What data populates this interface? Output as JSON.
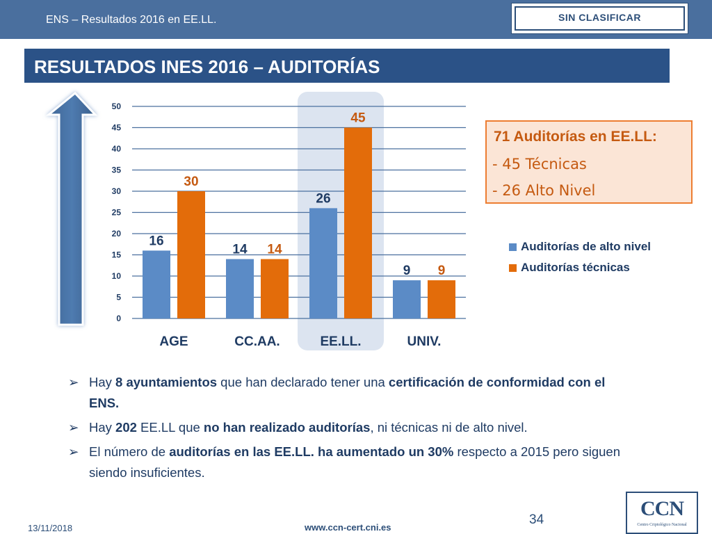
{
  "header": {
    "title": "ENS – Resultados 2016 en EE.LL.",
    "classification": "SIN CLASIFICAR"
  },
  "slide": {
    "title": "RESULTADOS INES 2016 – AUDITORÍAS"
  },
  "chart_data": {
    "type": "bar",
    "categories": [
      "AGE",
      "CC.AA.",
      "EE.LL.",
      "UNIV."
    ],
    "series": [
      {
        "name": "Auditorías de alto nivel",
        "values": [
          16,
          14,
          26,
          9
        ],
        "color": "#5b8bc6"
      },
      {
        "name": "Auditorías técnicas",
        "values": [
          30,
          14,
          45,
          9
        ],
        "color": "#e36c0a"
      }
    ],
    "ylim": [
      0,
      50
    ],
    "yticks": [
      0,
      5,
      10,
      15,
      20,
      25,
      30,
      35,
      40,
      45,
      50
    ],
    "highlighted_category": "EE.LL.",
    "grid": true,
    "legend": "right"
  },
  "callout": {
    "title": "71 Auditorías en EE.LL:",
    "lines": [
      "- 45 Técnicas",
      "- 26 Alto Nivel"
    ]
  },
  "legend": {
    "items": [
      {
        "label": "Auditorías de alto nivel",
        "color": "#5b8bc6"
      },
      {
        "label": "Auditorías técnicas",
        "color": "#e36c0a"
      }
    ]
  },
  "bullets": [
    {
      "marker": "➢",
      "parts": [
        {
          "text": "Hay ",
          "bold": false
        },
        {
          "text": "8 ayuntamientos",
          "bold": true
        },
        {
          "text": " que han declarado tener una ",
          "bold": false
        },
        {
          "text": "certificación de conformidad con el ENS.",
          "bold": true
        }
      ]
    },
    {
      "marker": "➢",
      "parts": [
        {
          "text": "Hay ",
          "bold": false
        },
        {
          "text": "202",
          "bold": true
        },
        {
          "text": " EE.LL que ",
          "bold": false
        },
        {
          "text": "no han realizado auditorías",
          "bold": true
        },
        {
          "text": ", ni técnicas ni de alto nivel.",
          "bold": false
        }
      ]
    },
    {
      "marker": "➢",
      "parts": [
        {
          "text": "El número de ",
          "bold": false
        },
        {
          "text": "auditorías en las EE.LL. ha aumentado un 30%",
          "bold": true
        },
        {
          "text": " respecto a 2015 pero siguen siendo insuficientes.",
          "bold": false
        }
      ]
    }
  ],
  "footer": {
    "date": "13/11/2018",
    "url": "www.ccn-cert.cni.es",
    "page": "34"
  },
  "logo": {
    "letters": "CCN",
    "subtitle": "Centro Criptológico Nacional"
  }
}
